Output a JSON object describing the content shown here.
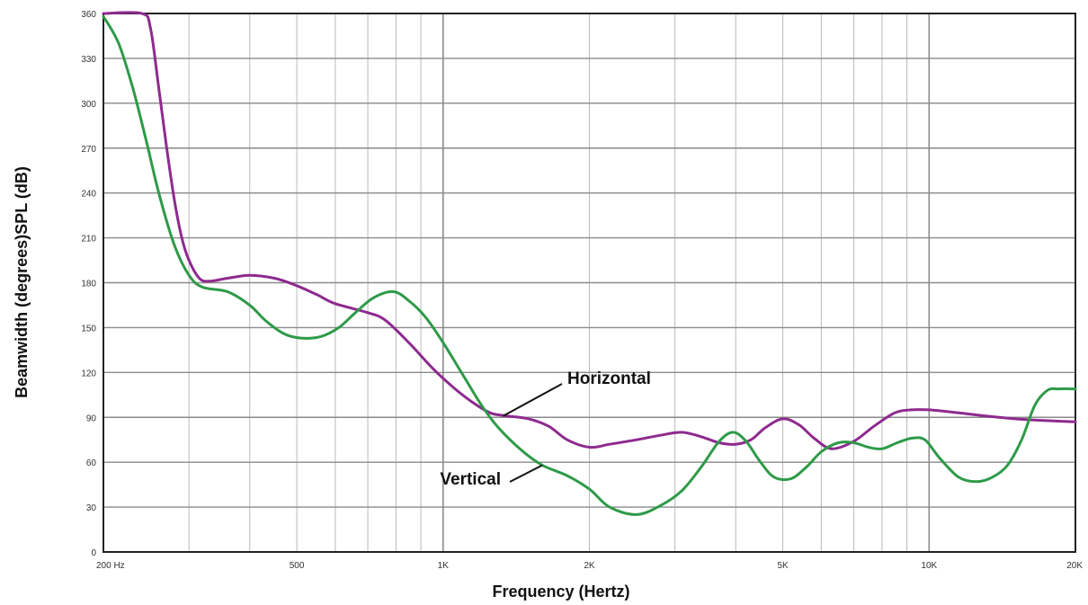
{
  "chart_data": {
    "type": "line",
    "xscale": "log",
    "xlim": [
      200,
      20000
    ],
    "ylim": [
      0,
      360
    ],
    "xlabel": "Frequency (Hertz)",
    "ylabel": "Beamwidth (degrees)SPL (dB)",
    "grid": true,
    "x_ticks": [
      {
        "value": 200,
        "label": "200 Hz"
      },
      {
        "value": 500,
        "label": "500"
      },
      {
        "value": 1000,
        "label": "1K"
      },
      {
        "value": 2000,
        "label": "2K"
      },
      {
        "value": 5000,
        "label": "5K"
      },
      {
        "value": 10000,
        "label": "10K"
      },
      {
        "value": 20000,
        "label": "20K"
      }
    ],
    "y_ticks": [
      {
        "value": 0,
        "label": "0"
      },
      {
        "value": 30,
        "label": "30"
      },
      {
        "value": 60,
        "label": "60"
      },
      {
        "value": 90,
        "label": "90"
      },
      {
        "value": 120,
        "label": "120"
      },
      {
        "value": 150,
        "label": "150"
      },
      {
        "value": 180,
        "label": "180"
      },
      {
        "value": 210,
        "label": "210"
      },
      {
        "value": 240,
        "label": "240"
      },
      {
        "value": 270,
        "label": "270"
      },
      {
        "value": 300,
        "label": "300"
      },
      {
        "value": 330,
        "label": "330"
      },
      {
        "value": 360,
        "label": "360"
      }
    ],
    "series": [
      {
        "name": "Horizontal",
        "color": "#8e2a8e",
        "points": [
          [
            200,
            360
          ],
          [
            240,
            360
          ],
          [
            250,
            350
          ],
          [
            260,
            310
          ],
          [
            270,
            270
          ],
          [
            280,
            235
          ],
          [
            290,
            210
          ],
          [
            300,
            195
          ],
          [
            315,
            183
          ],
          [
            330,
            181
          ],
          [
            360,
            183
          ],
          [
            400,
            185
          ],
          [
            450,
            183
          ],
          [
            500,
            178
          ],
          [
            550,
            172
          ],
          [
            600,
            166
          ],
          [
            700,
            160
          ],
          [
            760,
            155
          ],
          [
            850,
            140
          ],
          [
            950,
            123
          ],
          [
            1050,
            110
          ],
          [
            1150,
            100
          ],
          [
            1250,
            93
          ],
          [
            1350,
            91
          ],
          [
            1500,
            89
          ],
          [
            1650,
            84
          ],
          [
            1800,
            75
          ],
          [
            2000,
            70
          ],
          [
            2200,
            72
          ],
          [
            2500,
            75
          ],
          [
            2800,
            78
          ],
          [
            3100,
            80
          ],
          [
            3400,
            77
          ],
          [
            3700,
            73
          ],
          [
            4000,
            72
          ],
          [
            4300,
            75
          ],
          [
            4600,
            83
          ],
          [
            5000,
            89
          ],
          [
            5400,
            85
          ],
          [
            5800,
            76
          ],
          [
            6300,
            69
          ],
          [
            7000,
            74
          ],
          [
            7700,
            84
          ],
          [
            8500,
            93
          ],
          [
            9200,
            95
          ],
          [
            10000,
            95
          ],
          [
            11500,
            93
          ],
          [
            13000,
            91
          ],
          [
            15000,
            89
          ],
          [
            17000,
            88
          ],
          [
            20000,
            87
          ]
        ]
      },
      {
        "name": "Vertical",
        "color": "#2e9a48",
        "points": [
          [
            200,
            358
          ],
          [
            215,
            340
          ],
          [
            230,
            310
          ],
          [
            245,
            275
          ],
          [
            260,
            240
          ],
          [
            280,
            205
          ],
          [
            300,
            185
          ],
          [
            320,
            177
          ],
          [
            360,
            174
          ],
          [
            400,
            165
          ],
          [
            430,
            155
          ],
          [
            470,
            146
          ],
          [
            510,
            143
          ],
          [
            560,
            144
          ],
          [
            610,
            150
          ],
          [
            660,
            160
          ],
          [
            720,
            170
          ],
          [
            790,
            174
          ],
          [
            850,
            168
          ],
          [
            920,
            157
          ],
          [
            1000,
            140
          ],
          [
            1100,
            118
          ],
          [
            1200,
            98
          ],
          [
            1300,
            83
          ],
          [
            1450,
            68
          ],
          [
            1600,
            58
          ],
          [
            1800,
            51
          ],
          [
            2000,
            42
          ],
          [
            2200,
            30
          ],
          [
            2500,
            25
          ],
          [
            2800,
            31
          ],
          [
            3100,
            41
          ],
          [
            3400,
            57
          ],
          [
            3700,
            74
          ],
          [
            3950,
            80
          ],
          [
            4200,
            74
          ],
          [
            4500,
            60
          ],
          [
            4800,
            50
          ],
          [
            5200,
            49
          ],
          [
            5600,
            57
          ],
          [
            6000,
            67
          ],
          [
            6500,
            73
          ],
          [
            7000,
            73
          ],
          [
            7500,
            70
          ],
          [
            8000,
            69
          ],
          [
            8600,
            73
          ],
          [
            9200,
            76
          ],
          [
            9800,
            75
          ],
          [
            10500,
            63
          ],
          [
            11500,
            50
          ],
          [
            12500,
            47
          ],
          [
            13500,
            50
          ],
          [
            14500,
            58
          ],
          [
            15500,
            75
          ],
          [
            16500,
            98
          ],
          [
            17500,
            108
          ],
          [
            18500,
            109
          ],
          [
            20000,
            109
          ]
        ]
      }
    ],
    "annotations": [
      {
        "text": "Horizontal",
        "series": "Horizontal",
        "x_data": 1330,
        "y_data": 91
      },
      {
        "text": "Vertical",
        "series": "Vertical",
        "x_data": 1600,
        "y_data": 58
      }
    ]
  }
}
